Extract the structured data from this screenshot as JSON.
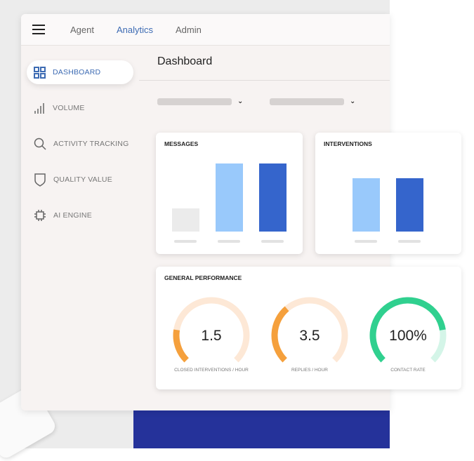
{
  "nav": {
    "tabs": [
      {
        "label": "Agent",
        "active": false
      },
      {
        "label": "Analytics",
        "active": true
      },
      {
        "label": "Admin",
        "active": false
      }
    ]
  },
  "sidebar": {
    "items": [
      {
        "label": "DASHBOARD",
        "icon": "grid-icon",
        "active": true
      },
      {
        "label": "VOLUME",
        "icon": "signal-bars-icon"
      },
      {
        "label": "ACTIVITY TRACKING",
        "icon": "search-icon"
      },
      {
        "label": "QUALITY VALUE",
        "icon": "shield-icon"
      },
      {
        "label": "AI ENGINE",
        "icon": "chip-icon"
      }
    ]
  },
  "main": {
    "title": "Dashboard"
  },
  "colors": {
    "accent": "#3d6bb3",
    "light_blue": "#99c9fb",
    "dark_blue": "#3565cc",
    "gray": "#ebebeb",
    "orange": "#f5a03c",
    "orange_track": "#fde8d6",
    "green": "#30d08f",
    "green_track": "#d4f5e8"
  },
  "chart_data": [
    {
      "type": "bar",
      "title": "MESSAGES",
      "values": [
        33,
        97,
        97
      ],
      "colors": [
        "#ebebeb",
        "#99c9fb",
        "#3565cc"
      ]
    },
    {
      "type": "bar",
      "title": "INTERVENTIONS",
      "values": [
        76,
        76
      ],
      "colors": [
        "#99c9fb",
        "#3565cc"
      ]
    }
  ],
  "performance": {
    "title": "GENERAL PERFORMANCE",
    "gauges": [
      {
        "value": "1.5",
        "label": "CLOSED INTERVENTIONS / HOUR",
        "fill": 0.2,
        "color": "#f5a03c",
        "track": "#fde8d6"
      },
      {
        "value": "3.5",
        "label": "REPLIES / HOUR",
        "fill": 0.35,
        "color": "#f5a03c",
        "track": "#fde8d6"
      },
      {
        "value": "100%",
        "label": "CONTACT RATE",
        "fill": 0.8,
        "color": "#30d08f",
        "track": "#d4f5e8"
      }
    ]
  }
}
